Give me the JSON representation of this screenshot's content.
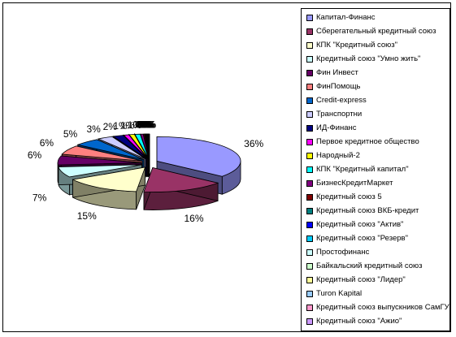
{
  "chart_data": {
    "type": "pie",
    "title": "",
    "series": [
      {
        "name": "Капитал-Финанс",
        "value": 36,
        "label": "36%",
        "color": "#9999ff"
      },
      {
        "name": "Сберегательный кредитный союз",
        "value": 16,
        "label": "16%",
        "color": "#993366"
      },
      {
        "name": "КПК \"Кредитный союз\"",
        "value": 15,
        "label": "15%",
        "color": "#ffffcc"
      },
      {
        "name": "Кредитный союз \"Умно жить\"",
        "value": 7,
        "label": "7%",
        "color": "#ccffff"
      },
      {
        "name": "Фин Инвест",
        "value": 6,
        "label": "6%",
        "color": "#660066"
      },
      {
        "name": "ФинПомощь",
        "value": 6,
        "label": "6%",
        "color": "#ff8080"
      },
      {
        "name": "Credit-express",
        "value": 5,
        "label": "5%",
        "color": "#0066cc"
      },
      {
        "name": "Транспортни",
        "value": 3,
        "label": "3%",
        "color": "#ccccff"
      },
      {
        "name": "ИД-Финанс",
        "value": 2,
        "label": "2%",
        "color": "#000080"
      },
      {
        "name": "Первое кредитное общество",
        "value": 1,
        "label": "1%",
        "color": "#ff00ff"
      },
      {
        "name": "Народный-2",
        "value": 1,
        "label": "1%",
        "color": "#ffff00"
      },
      {
        "name": "КПК \"Кредитный капитал\"",
        "value": 1,
        "label": "1%",
        "color": "#00ffff"
      },
      {
        "name": "БизнесКредитМаркет",
        "value": 0.5,
        "label": "0%",
        "color": "#800080"
      },
      {
        "name": "Кредитный союз 5",
        "value": 0.2,
        "label": "0%",
        "color": "#800000"
      },
      {
        "name": "Кредитный союз ВКБ-кредит",
        "value": 0.1,
        "label": "0%",
        "color": "#008080"
      },
      {
        "name": "Кредитный союз \"Актив\"",
        "value": 0.1,
        "label": "0%",
        "color": "#0000ff"
      },
      {
        "name": "Кредитный союз \"Резерв\"",
        "value": 0.1,
        "label": "0%",
        "color": "#00ccff"
      },
      {
        "name": "Простофинанс",
        "value": 0.1,
        "label": "0%",
        "color": "#ccffff"
      },
      {
        "name": "Байкальский кредитный союз",
        "value": 0.1,
        "label": "0%",
        "color": "#ccffcc"
      },
      {
        "name": "Кредитный союз \"Лидер\"",
        "value": 0.1,
        "label": "0%",
        "color": "#ffff99"
      },
      {
        "name": "Turon Kapital",
        "value": 0.1,
        "label": "0%",
        "color": "#99ccff"
      },
      {
        "name": "Кредитный союз выпускников СамГУ",
        "value": 0.1,
        "label": "0%",
        "color": "#ff99cc"
      },
      {
        "name": "Кредитный союз \"Ажио\"",
        "value": 0.1,
        "label": "0%",
        "color": "#cc99ff"
      }
    ],
    "legend": "right",
    "style": "3d-exploded"
  }
}
